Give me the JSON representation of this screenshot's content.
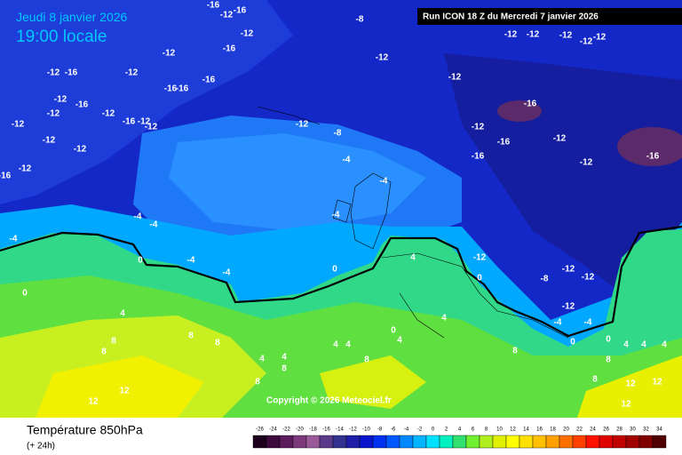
{
  "header": {
    "date": "Jeudi 8 janvier 2026",
    "time": "19:00 locale",
    "run": "Run ICON 18 Z du Mercredi 7 janvier 2026"
  },
  "footer": {
    "title": "Température 850hPa",
    "step": "(+ 24h)",
    "copyright": "Copyright © 2026 Meteociel.fr"
  },
  "legend": {
    "ticks": [
      -26,
      -24,
      -22,
      -20,
      -18,
      -16,
      -14,
      -12,
      -10,
      -8,
      -6,
      -4,
      -2,
      0,
      2,
      4,
      6,
      8,
      10,
      12,
      14,
      16,
      18,
      20,
      22,
      24,
      26,
      28,
      30,
      32,
      34
    ],
    "colors": [
      "#1c001c",
      "#3c0a3c",
      "#5c1c5c",
      "#7c3a7c",
      "#9a5a9a",
      "#5a3a8a",
      "#33338f",
      "#1e1ea8",
      "#0a14cc",
      "#0030f0",
      "#0058ff",
      "#0088ff",
      "#00b4ff",
      "#00e0ff",
      "#00f0c0",
      "#30e070",
      "#70f030",
      "#b0f020",
      "#e0f000",
      "#ffff00",
      "#ffe000",
      "#ffc000",
      "#ffa000",
      "#ff7000",
      "#ff4000",
      "#ff1000",
      "#e00000",
      "#c00000",
      "#a00000",
      "#800000",
      "#500000"
    ]
  },
  "map_labels": [
    -16,
    -12,
    -16,
    -8,
    -12,
    -12,
    -12,
    -12,
    -12,
    -12,
    -16,
    -12,
    -12,
    -12,
    -16,
    -12,
    -16,
    -12,
    -16,
    -16,
    -12,
    -16,
    -12,
    -16,
    -12,
    -12,
    -12,
    -12,
    -12,
    -8,
    -12,
    -16,
    -12,
    -16,
    -12,
    -12,
    -16,
    -12,
    -16,
    -12,
    -4,
    -16,
    -4,
    -4,
    -4,
    -4,
    -4,
    -12,
    -12,
    -4,
    -4,
    -8,
    -12,
    0,
    4,
    0,
    0,
    0,
    -12,
    4,
    4,
    -4,
    -4,
    4,
    4,
    4,
    0,
    0,
    8,
    8,
    8,
    4,
    4,
    4,
    0,
    8,
    8,
    4,
    4,
    8,
    8,
    8,
    12,
    12,
    8,
    8,
    12,
    12,
    12
  ]
}
